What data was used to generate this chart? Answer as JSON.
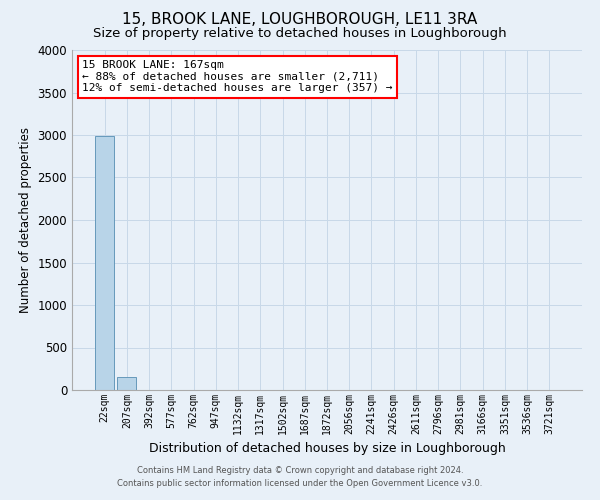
{
  "title": "15, BROOK LANE, LOUGHBOROUGH, LE11 3RA",
  "subtitle": "Size of property relative to detached houses in Loughborough",
  "xlabel": "Distribution of detached houses by size in Loughborough",
  "ylabel": "Number of detached properties",
  "footer_line1": "Contains HM Land Registry data © Crown copyright and database right 2024.",
  "footer_line2": "Contains public sector information licensed under the Open Government Licence v3.0.",
  "categories": [
    "22sqm",
    "207sqm",
    "392sqm",
    "577sqm",
    "762sqm",
    "947sqm",
    "1132sqm",
    "1317sqm",
    "1502sqm",
    "1687sqm",
    "1872sqm",
    "2056sqm",
    "2241sqm",
    "2426sqm",
    "2611sqm",
    "2796sqm",
    "2981sqm",
    "3166sqm",
    "3351sqm",
    "3536sqm",
    "3721sqm"
  ],
  "values": [
    2990,
    150,
    5,
    2,
    1,
    1,
    0,
    0,
    0,
    0,
    0,
    0,
    0,
    0,
    0,
    0,
    0,
    0,
    0,
    0,
    0
  ],
  "bar_color": "#b8d4e8",
  "bar_edge_color": "#6699bb",
  "grid_color": "#c8d8e8",
  "background_color": "#e8f0f8",
  "plot_bg_color": "#e8f0f8",
  "ylim": [
    0,
    4000
  ],
  "yticks": [
    0,
    500,
    1000,
    1500,
    2000,
    2500,
    3000,
    3500,
    4000
  ],
  "annotation_title": "15 BROOK LANE: 167sqm",
  "annotation_line1": "← 88% of detached houses are smaller (2,711)",
  "annotation_line2": "12% of semi-detached houses are larger (357) →",
  "title_fontsize": 11,
  "subtitle_fontsize": 9.5,
  "tick_fontsize": 7,
  "ylabel_fontsize": 8.5,
  "xlabel_fontsize": 9,
  "annotation_fontsize": 8,
  "footer_fontsize": 6
}
